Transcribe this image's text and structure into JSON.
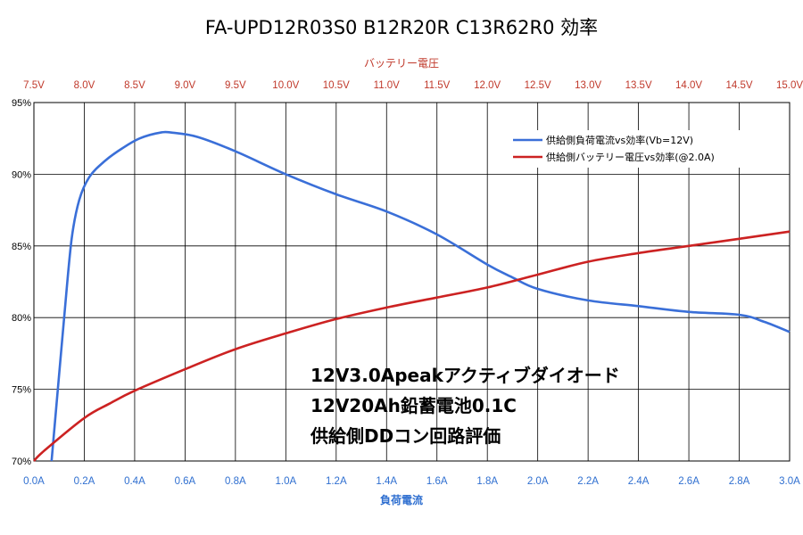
{
  "chart_data": {
    "type": "line",
    "title": "FA-UPD12R03S0 B12R20R C13R62R0 効率",
    "x_bottom": {
      "label": "負荷電流",
      "ticks": [
        "0.0A",
        "0.2A",
        "0.4A",
        "0.6A",
        "0.8A",
        "1.0A",
        "1.2A",
        "1.4A",
        "1.6A",
        "1.8A",
        "2.0A",
        "2.2A",
        "2.4A",
        "2.6A",
        "2.8A",
        "3.0A"
      ],
      "range": [
        0.0,
        3.0
      ],
      "color": "#2f6fd0"
    },
    "x_top": {
      "label": "バッテリー電圧",
      "ticks": [
        "7.5V",
        "8.0V",
        "8.5V",
        "9.0V",
        "9.5V",
        "10.0V",
        "10.5V",
        "11.0V",
        "11.5V",
        "12.0V",
        "12.5V",
        "13.0V",
        "13.5V",
        "14.0V",
        "14.5V",
        "15.0V"
      ],
      "range": [
        7.5,
        15.0
      ],
      "color": "#c0392b"
    },
    "y": {
      "ticks": [
        "70%",
        "75%",
        "80%",
        "85%",
        "90%",
        "95%"
      ],
      "range": [
        70,
        95
      ]
    },
    "grid": true,
    "legend_position": "top-right",
    "series": [
      {
        "name": "供給側負荷電流vs効率(Vb=12V)",
        "color": "#3a6fd8",
        "axis": "bottom",
        "points": [
          [
            0.07,
            70.0
          ],
          [
            0.09,
            74.0
          ],
          [
            0.12,
            80.0
          ],
          [
            0.15,
            85.5
          ],
          [
            0.18,
            88.2
          ],
          [
            0.22,
            89.8
          ],
          [
            0.28,
            90.9
          ],
          [
            0.35,
            91.8
          ],
          [
            0.42,
            92.5
          ],
          [
            0.5,
            92.9
          ],
          [
            0.55,
            92.9
          ],
          [
            0.65,
            92.6
          ],
          [
            0.8,
            91.6
          ],
          [
            1.0,
            90.0
          ],
          [
            1.2,
            88.6
          ],
          [
            1.4,
            87.4
          ],
          [
            1.6,
            85.8
          ],
          [
            1.8,
            83.7
          ],
          [
            1.9,
            82.8
          ],
          [
            2.0,
            82.0
          ],
          [
            2.2,
            81.2
          ],
          [
            2.4,
            80.8
          ],
          [
            2.6,
            80.4
          ],
          [
            2.8,
            80.2
          ],
          [
            2.9,
            79.7
          ],
          [
            3.0,
            79.0
          ]
        ]
      },
      {
        "name": "供給側バッテリー電圧vs効率(@2.0A)",
        "color": "#cc2222",
        "axis": "top",
        "points": [
          [
            7.5,
            70.0
          ],
          [
            7.6,
            70.7
          ],
          [
            8.0,
            73.0
          ],
          [
            8.25,
            74.0
          ],
          [
            8.5,
            74.9
          ],
          [
            9.0,
            76.4
          ],
          [
            9.5,
            77.8
          ],
          [
            10.0,
            78.9
          ],
          [
            10.5,
            79.9
          ],
          [
            11.0,
            80.7
          ],
          [
            11.5,
            81.4
          ],
          [
            12.0,
            82.1
          ],
          [
            12.5,
            83.0
          ],
          [
            13.0,
            83.9
          ],
          [
            13.5,
            84.5
          ],
          [
            14.0,
            85.0
          ],
          [
            14.5,
            85.5
          ],
          [
            15.0,
            86.0
          ]
        ]
      }
    ],
    "annotations": [
      "12V3.0Apeakアクティブダイオード",
      "12V20Ah鉛蓄電池0.1C",
      "供給側DDコン回路評価"
    ]
  }
}
